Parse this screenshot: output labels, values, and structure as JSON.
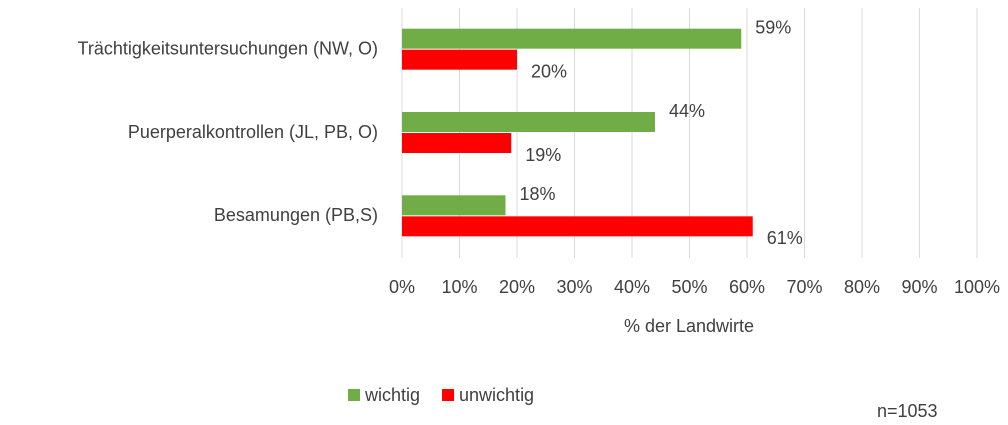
{
  "chart_data": {
    "type": "bar",
    "orientation": "horizontal",
    "categories": [
      "Trächtigkeitsuntersuchungen (NW, O)",
      "Puerperalkontrollen (JL, PB, O)",
      "Besamungen (PB,S)"
    ],
    "series": [
      {
        "name": "wichtig",
        "color": "#70ad47",
        "values": [
          59,
          44,
          18
        ],
        "value_labels": [
          "59%",
          "44%",
          "18%"
        ]
      },
      {
        "name": "unwichtig",
        "color": "#ff0000",
        "values": [
          20,
          19,
          61
        ],
        "value_labels": [
          "20%",
          "19%",
          "61%"
        ]
      }
    ],
    "xlabel": "% der Landwirte",
    "xlim": [
      0,
      100
    ],
    "xticks": [
      {
        "value": 0,
        "label": "0%"
      },
      {
        "value": 10,
        "label": "10%"
      },
      {
        "value": 20,
        "label": "20%"
      },
      {
        "value": 30,
        "label": "30%"
      },
      {
        "value": 40,
        "label": "40%"
      },
      {
        "value": 50,
        "label": "50%"
      },
      {
        "value": 60,
        "label": "60%"
      },
      {
        "value": 70,
        "label": "70%"
      },
      {
        "value": 80,
        "label": "80%"
      },
      {
        "value": 90,
        "label": "90%"
      },
      {
        "value": 100,
        "label": "100%"
      }
    ],
    "grid": true,
    "legend": "bottom",
    "annotation": "n=1053"
  }
}
